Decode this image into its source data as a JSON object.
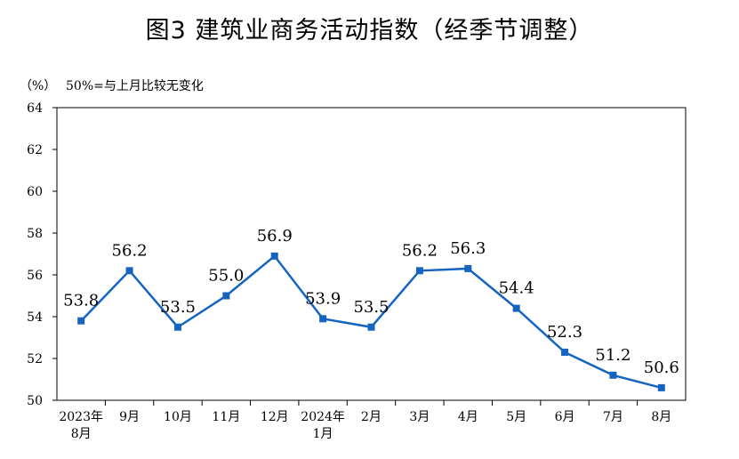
{
  "title": "图3  建筑业商务活动指数（经季节调整）",
  "unit_label": "（%）",
  "note": "50%=与上月比较无变化",
  "colors": {
    "line": "#1565C0",
    "axis": "#000000"
  },
  "chart_data": {
    "type": "line",
    "title": "图3  建筑业商务活动指数（经季节调整）",
    "categories": [
      [
        "2023年",
        "8月"
      ],
      [
        "9月"
      ],
      [
        "10月"
      ],
      [
        "11月"
      ],
      [
        "12月"
      ],
      [
        "2024年",
        "1月"
      ],
      [
        "2月"
      ],
      [
        "3月"
      ],
      [
        "4月"
      ],
      [
        "5月"
      ],
      [
        "6月"
      ],
      [
        "7月"
      ],
      [
        "8月"
      ]
    ],
    "series": [
      {
        "values": [
          53.8,
          56.2,
          53.5,
          55.0,
          56.9,
          53.9,
          53.5,
          56.2,
          56.3,
          54.4,
          52.3,
          51.2,
          50.6
        ],
        "labels": [
          "53.8",
          "56.2",
          "53.5",
          "55.0",
          "56.9",
          "53.9",
          "53.5",
          "56.2",
          "56.3",
          "54.4",
          "52.3",
          "51.2",
          "50.6"
        ]
      }
    ],
    "ylim": [
      50,
      64
    ],
    "yticks": [
      "50",
      "52",
      "54",
      "56",
      "58",
      "60",
      "62",
      "64"
    ],
    "grid": false,
    "legend": "none"
  }
}
